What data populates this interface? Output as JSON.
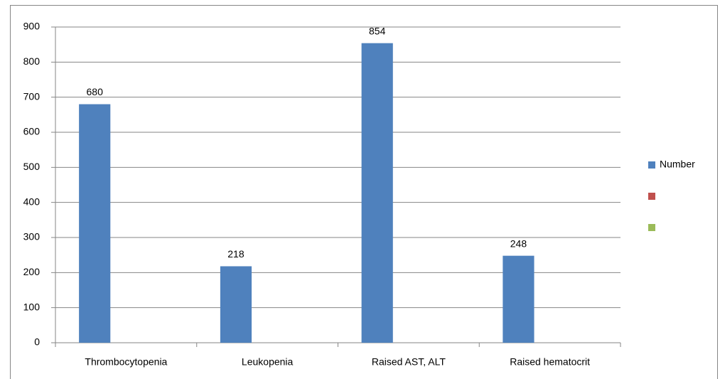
{
  "chart_data": {
    "type": "bar",
    "categories": [
      "Thrombocytopenia",
      "Leukopenia",
      "Raised AST, ALT",
      "Raised hematocrit"
    ],
    "series": [
      {
        "name": "Number",
        "color": "#4f81bd",
        "values": [
          680,
          218,
          854,
          248
        ]
      },
      {
        "name": null,
        "color": "#c0504d",
        "values": [
          null,
          null,
          null,
          null
        ]
      },
      {
        "name": null,
        "color": "#9bbb59",
        "values": [
          null,
          null,
          null,
          null
        ]
      }
    ],
    "ylim": [
      0,
      900
    ],
    "yticks": [
      0,
      100,
      200,
      300,
      400,
      500,
      600,
      700,
      800,
      900
    ],
    "grid": true,
    "legend": "right"
  }
}
